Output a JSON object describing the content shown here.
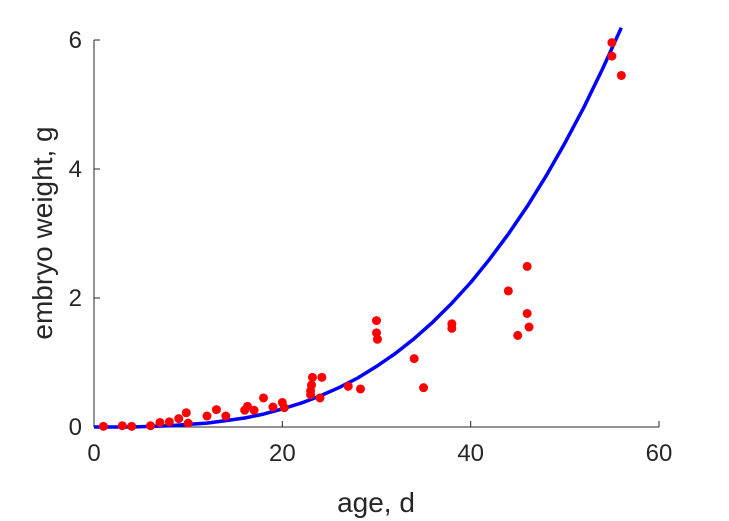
{
  "chart_data": {
    "type": "scatter",
    "xlabel": "age, d",
    "ylabel": "embryo weight, g",
    "xlim": [
      0,
      60
    ],
    "ylim": [
      0,
      6
    ],
    "xticks": [
      "0",
      "20",
      "40",
      "60"
    ],
    "yticks": [
      "0",
      "2",
      "4",
      "6"
    ],
    "grid": false,
    "series": [
      {
        "kind": "scatter",
        "color": "#ff0000",
        "points": [
          [
            1,
            0.01
          ],
          [
            3,
            0.02
          ],
          [
            4,
            0.01
          ],
          [
            6,
            0.02
          ],
          [
            7,
            0.07
          ],
          [
            8,
            0.08
          ],
          [
            9,
            0.13
          ],
          [
            9.8,
            0.22
          ],
          [
            10,
            0.06
          ],
          [
            12,
            0.17
          ],
          [
            13,
            0.27
          ],
          [
            14,
            0.17
          ],
          [
            16,
            0.26
          ],
          [
            16.3,
            0.32
          ],
          [
            17,
            0.26
          ],
          [
            18,
            0.45
          ],
          [
            19,
            0.31
          ],
          [
            20,
            0.38
          ],
          [
            20.2,
            0.3
          ],
          [
            23,
            0.5
          ],
          [
            23,
            0.56
          ],
          [
            23.1,
            0.65
          ],
          [
            23.2,
            0.77
          ],
          [
            24,
            0.45
          ],
          [
            24.2,
            0.77
          ],
          [
            27,
            0.63
          ],
          [
            28.3,
            0.59
          ],
          [
            30,
            1.65
          ],
          [
            30,
            1.46
          ],
          [
            30.1,
            1.36
          ],
          [
            34,
            1.06
          ],
          [
            35,
            0.61
          ],
          [
            38,
            1.6
          ],
          [
            38,
            1.53
          ],
          [
            44,
            2.11
          ],
          [
            45,
            1.42
          ],
          [
            46,
            2.49
          ],
          [
            46,
            1.76
          ],
          [
            46.2,
            1.55
          ],
          [
            55,
            5.96
          ],
          [
            55,
            5.75
          ],
          [
            56,
            5.45
          ]
        ]
      },
      {
        "kind": "line",
        "color": "#0000ff",
        "x": [
          0,
          2,
          4,
          6,
          8,
          10,
          12,
          14,
          16,
          18,
          20,
          22,
          24,
          26,
          28,
          30,
          32,
          34,
          36,
          38,
          40,
          42,
          44,
          46,
          48,
          50,
          52,
          54,
          56
        ],
        "y": [
          0,
          0,
          0,
          0.01,
          0.02,
          0.04,
          0.06,
          0.1,
          0.14,
          0.2,
          0.28,
          0.37,
          0.48,
          0.61,
          0.76,
          0.94,
          1.14,
          1.37,
          1.63,
          1.92,
          2.24,
          2.6,
          2.99,
          3.42,
          3.89,
          4.4,
          4.95,
          5.55,
          6.19
        ]
      }
    ]
  }
}
